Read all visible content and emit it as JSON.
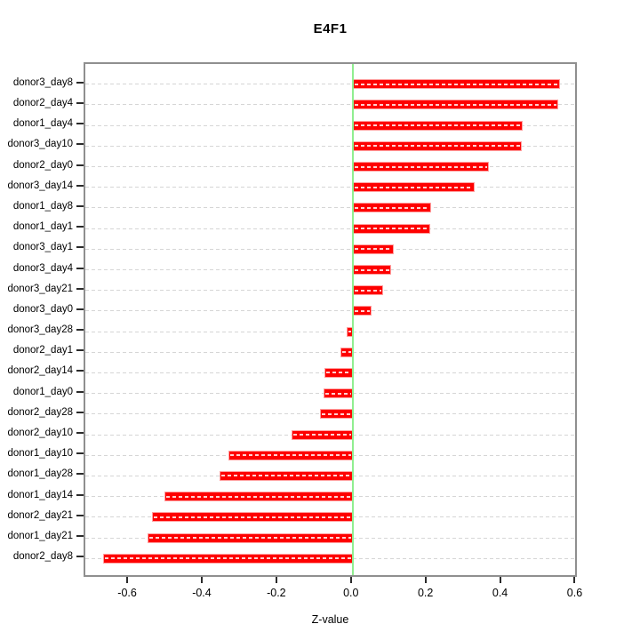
{
  "figure": {
    "background": "#ffffff"
  },
  "chart_data": {
    "type": "bar",
    "orientation": "horizontal",
    "title": "E4F1",
    "xlabel": "Z-value",
    "ylabel": "",
    "xlim": [
      -0.717,
      0.606
    ],
    "x_ticks": [
      -0.6,
      -0.4,
      -0.2,
      0.0,
      0.2,
      0.4,
      0.6
    ],
    "x_tick_labels": [
      "-0.6",
      "-0.4",
      "-0.2",
      "0.0",
      "0.2",
      "0.4",
      "0.6"
    ],
    "grid": "horizontal-dashed-per-row",
    "legend": "none",
    "zero_reference_line": 0.0,
    "categories": [
      "donor3_day8",
      "donor2_day4",
      "donor1_day4",
      "donor3_day10",
      "donor2_day0",
      "donor3_day14",
      "donor1_day8",
      "donor1_day1",
      "donor3_day1",
      "donor3_day4",
      "donor3_day21",
      "donor3_day0",
      "donor3_day28",
      "donor2_day1",
      "donor2_day14",
      "donor1_day0",
      "donor2_day28",
      "donor2_day10",
      "donor1_day10",
      "donor1_day28",
      "donor1_day14",
      "donor2_day21",
      "donor1_day21",
      "donor2_day8"
    ],
    "values": [
      0.556,
      0.551,
      0.457,
      0.454,
      0.366,
      0.327,
      0.21,
      0.208,
      0.11,
      0.102,
      0.082,
      0.05,
      -0.017,
      -0.033,
      -0.075,
      -0.077,
      -0.087,
      -0.165,
      -0.333,
      -0.358,
      -0.505,
      -0.538,
      -0.55,
      -0.67
    ],
    "colors": {
      "bar_fill": "#fe0000",
      "bar_border": "#ff9f9f",
      "bar_dash": "rgba(255,255,255,0.82)",
      "grid_line": "#d6d6d6",
      "zero_line": "#90ee90",
      "box_border": "#8f8f8f",
      "text": "#000000"
    }
  }
}
